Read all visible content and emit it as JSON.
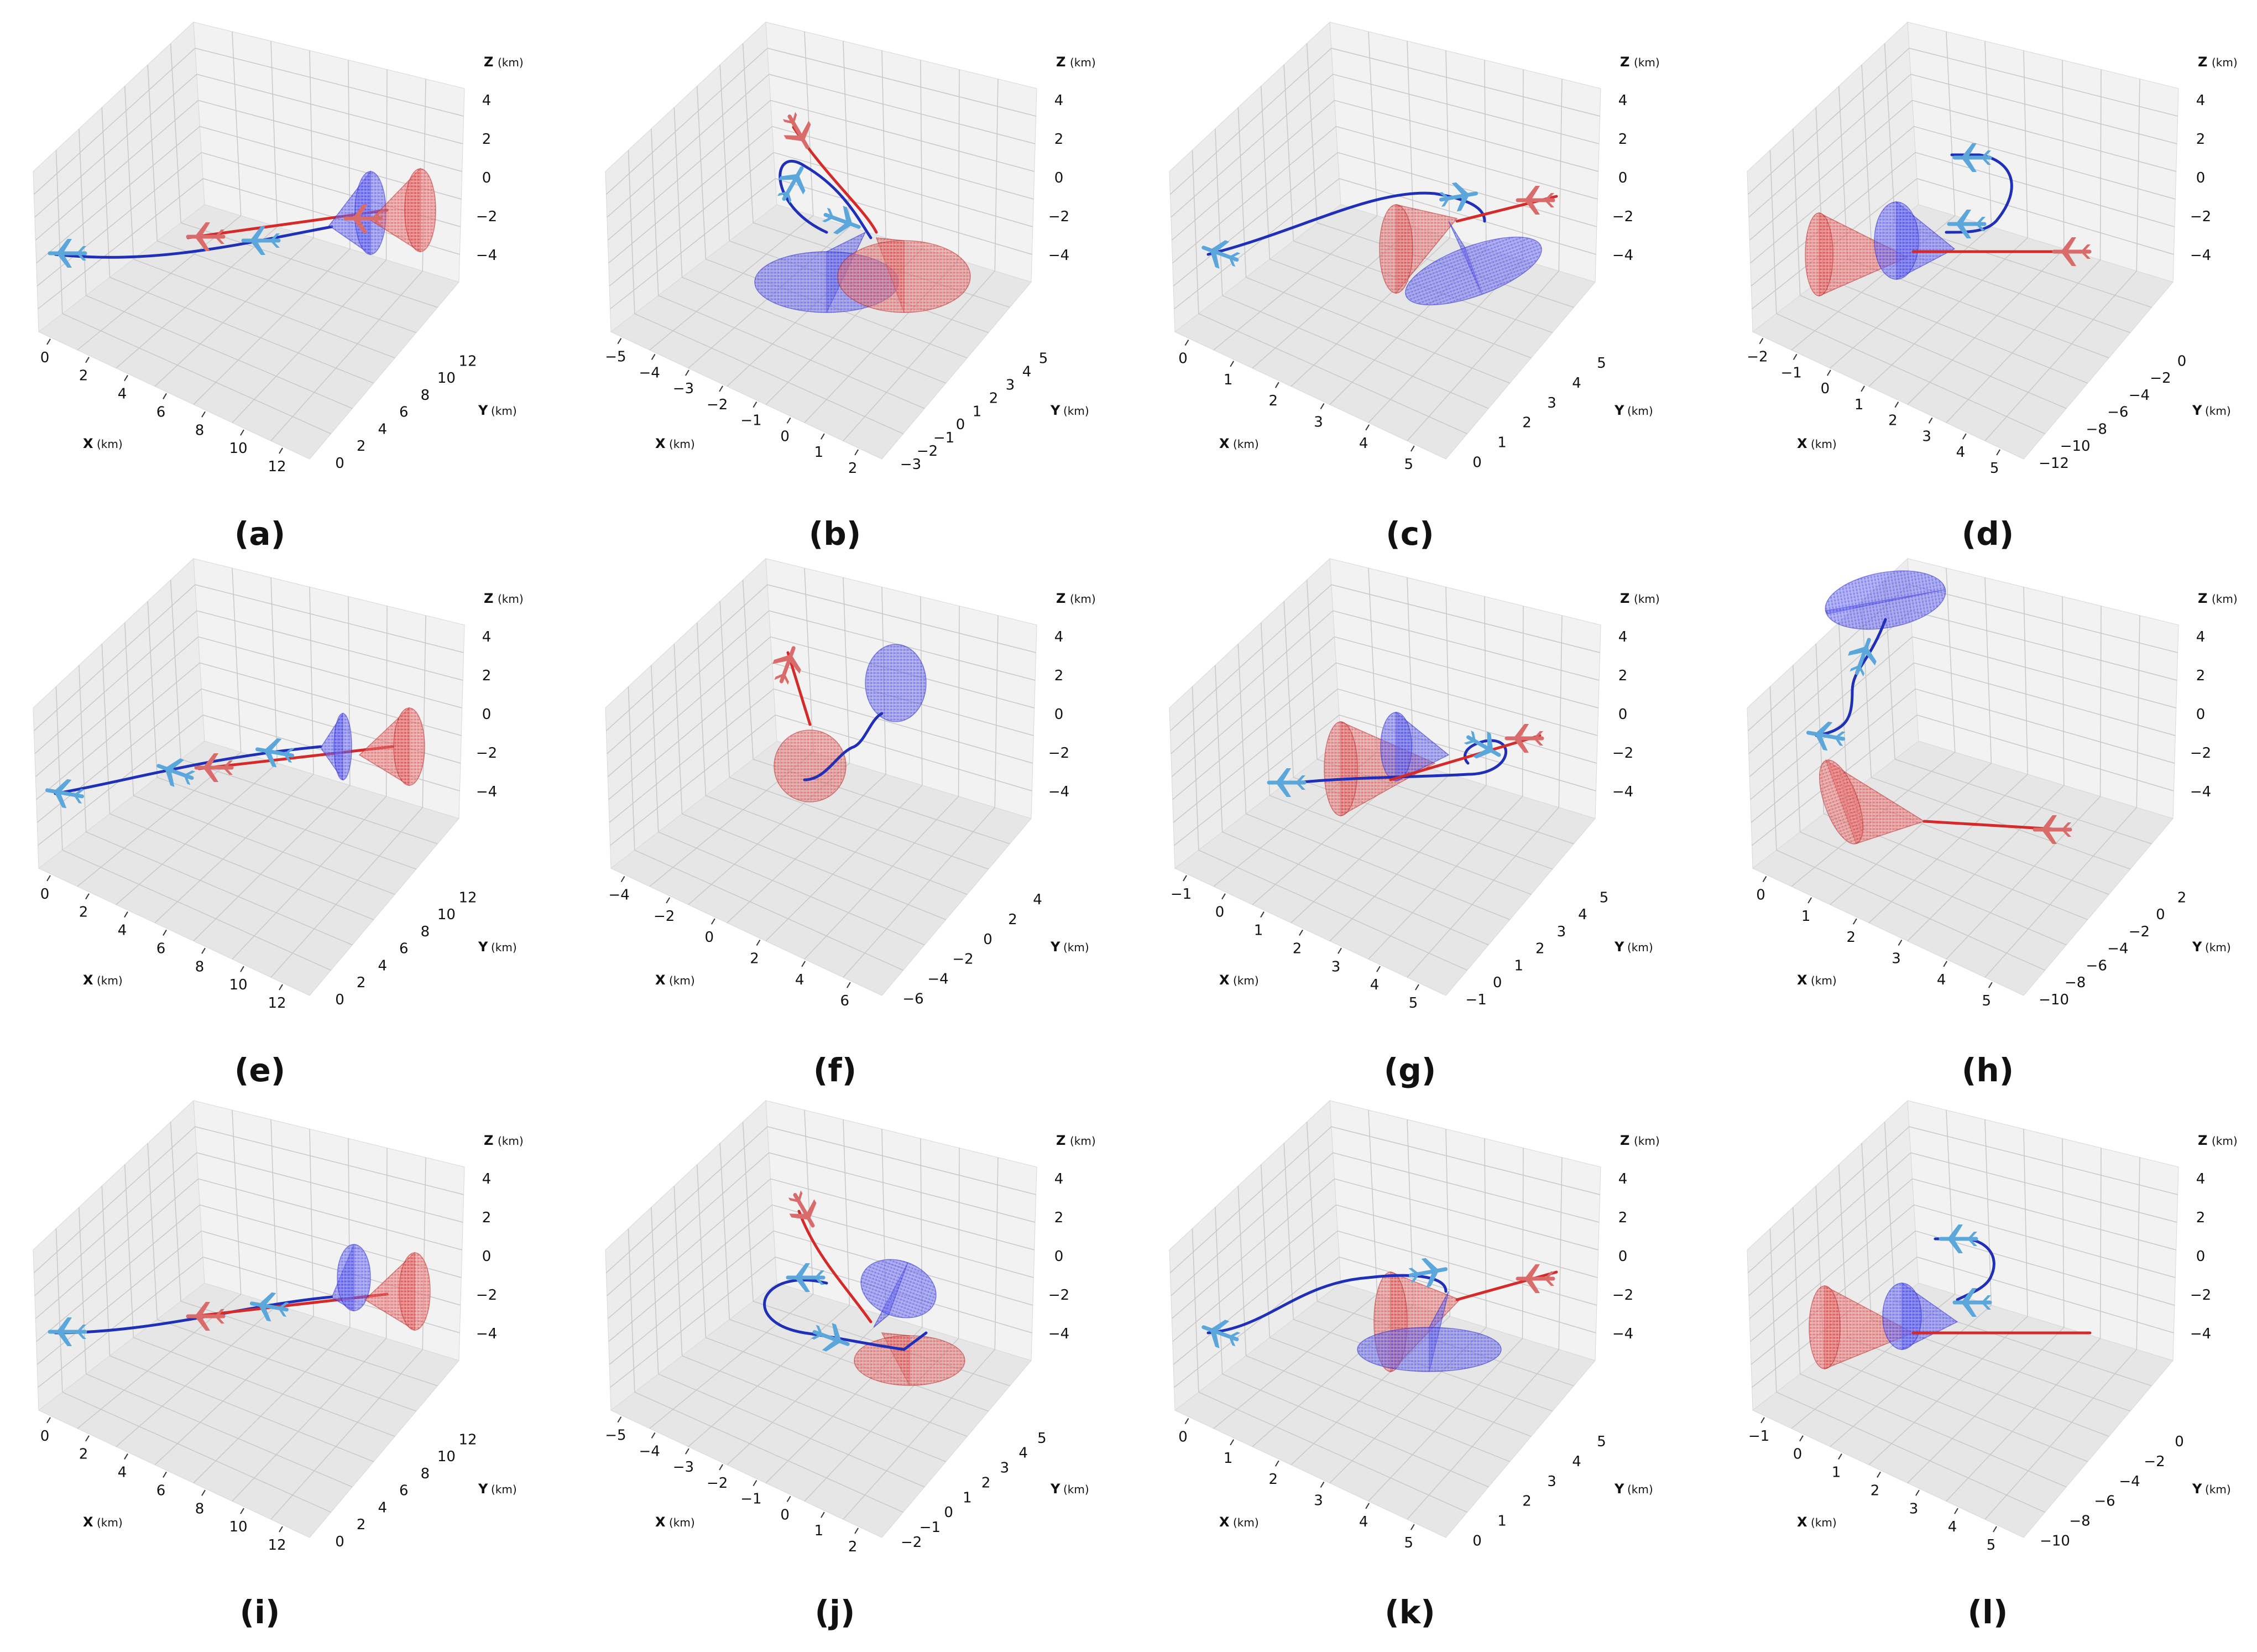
{
  "figure": {
    "description_free": true,
    "axis_units_label": "(km)"
  },
  "colors": {
    "blue_aircraft": "#5ba7dc",
    "red_aircraft": "#d96b6b",
    "blue_traj": "#1f2fb8",
    "red_traj": "#d42a2a",
    "blue_cone": "#4a4ae0",
    "red_cone": "#d93c3c",
    "pane": "#f0f0f0",
    "grid": "#c8c8c8"
  },
  "chart_data": [
    {
      "type": "line3d",
      "panel": "a",
      "caption": "(a)",
      "xlabel": "X",
      "ylabel": "Y",
      "zlabel": "Z",
      "unit": "(km)",
      "xticks": [
        "0",
        "2",
        "4",
        "6",
        "8",
        "10",
        "12"
      ],
      "yticks": [
        "0",
        "2",
        "4",
        "6",
        "8",
        "10",
        "12"
      ],
      "zticks": [
        "4",
        "2",
        "0",
        "−2",
        "−4"
      ],
      "xlim": [
        0,
        13
      ],
      "ylim": [
        0,
        13
      ],
      "zlim": [
        -5,
        5
      ]
    },
    {
      "type": "line3d",
      "panel": "b",
      "caption": "(b)",
      "xlabel": "X",
      "ylabel": "Y",
      "zlabel": "Z",
      "unit": "(km)",
      "xticks": [
        "−5",
        "−4",
        "−3",
        "−2",
        "−1",
        "0",
        "1",
        "2"
      ],
      "yticks": [
        "−3",
        "−2",
        "−1",
        "0",
        "1",
        "2",
        "3",
        "4",
        "5"
      ],
      "zticks": [
        "4",
        "2",
        "0",
        "−2",
        "−4"
      ],
      "xlim": [
        -5,
        2
      ],
      "ylim": [
        -3,
        5
      ],
      "zlim": [
        -5,
        5
      ]
    },
    {
      "type": "line3d",
      "panel": "c",
      "caption": "(c)",
      "xlabel": "X",
      "ylabel": "Y",
      "zlabel": "Z",
      "unit": "(km)",
      "xticks": [
        "0",
        "1",
        "2",
        "3",
        "4",
        "5"
      ],
      "yticks": [
        "0",
        "1",
        "2",
        "3",
        "4",
        "5"
      ],
      "zticks": [
        "4",
        "2",
        "0",
        "−2",
        "−4"
      ],
      "xlim": [
        0,
        5
      ],
      "ylim": [
        0,
        5
      ],
      "zlim": [
        -5,
        5
      ]
    },
    {
      "type": "line3d",
      "panel": "d",
      "caption": "(d)",
      "xlabel": "X",
      "ylabel": "Y",
      "zlabel": "Z",
      "unit": "(km)",
      "xticks": [
        "−2",
        "−1",
        "0",
        "1",
        "2",
        "3",
        "4",
        "5"
      ],
      "yticks": [
        "−12",
        "−10",
        "−8",
        "−6",
        "−4",
        "−2",
        "0"
      ],
      "zticks": [
        "4",
        "2",
        "0",
        "−2",
        "−4"
      ],
      "xlim": [
        -2,
        5
      ],
      "ylim": [
        -12,
        0
      ],
      "zlim": [
        -5,
        5
      ]
    },
    {
      "type": "line3d",
      "panel": "e",
      "caption": "(e)",
      "xlabel": "X",
      "ylabel": "Y",
      "zlabel": "Z",
      "unit": "(km)",
      "xticks": [
        "0",
        "2",
        "4",
        "6",
        "8",
        "10",
        "12"
      ],
      "yticks": [
        "0",
        "2",
        "4",
        "6",
        "8",
        "10",
        "12"
      ],
      "zticks": [
        "4",
        "2",
        "0",
        "−2",
        "−4"
      ],
      "xlim": [
        0,
        13
      ],
      "ylim": [
        0,
        13
      ],
      "zlim": [
        -5,
        5
      ]
    },
    {
      "type": "line3d",
      "panel": "f",
      "caption": "(f)",
      "xlabel": "X",
      "ylabel": "Y",
      "zlabel": "Z",
      "unit": "(km)",
      "xticks": [
        "−4",
        "−2",
        "0",
        "2",
        "4",
        "6"
      ],
      "yticks": [
        "−6",
        "−4",
        "−2",
        "0",
        "2",
        "4"
      ],
      "zticks": [
        "4",
        "2",
        "0",
        "−2",
        "−4"
      ],
      "xlim": [
        -5,
        7
      ],
      "ylim": [
        -6,
        5
      ],
      "zlim": [
        -5,
        5
      ]
    },
    {
      "type": "line3d",
      "panel": "g",
      "caption": "(g)",
      "xlabel": "X",
      "ylabel": "Y",
      "zlabel": "Z",
      "unit": "(km)",
      "xticks": [
        "−1",
        "0",
        "1",
        "2",
        "3",
        "4",
        "5"
      ],
      "yticks": [
        "−1",
        "0",
        "1",
        "2",
        "3",
        "4",
        "5"
      ],
      "zticks": [
        "4",
        "2",
        "0",
        "−2",
        "−4"
      ],
      "xlim": [
        -1,
        5
      ],
      "ylim": [
        -1,
        5
      ],
      "zlim": [
        -5,
        5
      ]
    },
    {
      "type": "line3d",
      "panel": "h",
      "caption": "(h)",
      "xlabel": "X",
      "ylabel": "Y",
      "zlabel": "Z",
      "unit": "(km)",
      "xticks": [
        "0",
        "1",
        "2",
        "3",
        "4",
        "5"
      ],
      "yticks": [
        "−10",
        "−8",
        "−6",
        "−4",
        "−2",
        "0",
        "2"
      ],
      "zticks": [
        "4",
        "2",
        "0",
        "−2",
        "−4"
      ],
      "xlim": [
        0,
        5
      ],
      "ylim": [
        -10,
        2
      ],
      "zlim": [
        -5,
        5
      ]
    },
    {
      "type": "line3d",
      "panel": "i",
      "caption": "(i)",
      "xlabel": "X",
      "ylabel": "Y",
      "zlabel": "Z",
      "unit": "(km)",
      "xticks": [
        "0",
        "2",
        "4",
        "6",
        "8",
        "10",
        "12"
      ],
      "yticks": [
        "0",
        "2",
        "4",
        "6",
        "8",
        "10",
        "12"
      ],
      "zticks": [
        "4",
        "2",
        "0",
        "−2",
        "−4"
      ],
      "xlim": [
        0,
        13
      ],
      "ylim": [
        0,
        13
      ],
      "zlim": [
        -5,
        5
      ]
    },
    {
      "type": "line3d",
      "panel": "j",
      "caption": "(j)",
      "xlabel": "X",
      "ylabel": "Y",
      "zlabel": "Z",
      "unit": "(km)",
      "xticks": [
        "−5",
        "−4",
        "−3",
        "−2",
        "−1",
        "0",
        "1",
        "2"
      ],
      "yticks": [
        "−2",
        "−1",
        "0",
        "1",
        "2",
        "3",
        "4",
        "5"
      ],
      "zticks": [
        "4",
        "2",
        "0",
        "−2",
        "−4"
      ],
      "xlim": [
        -5,
        2
      ],
      "ylim": [
        -2,
        5
      ],
      "zlim": [
        -5,
        5
      ]
    },
    {
      "type": "line3d",
      "panel": "k",
      "caption": "(k)",
      "xlabel": "X",
      "ylabel": "Y",
      "zlabel": "Z",
      "unit": "(km)",
      "xticks": [
        "0",
        "1",
        "2",
        "3",
        "4",
        "5"
      ],
      "yticks": [
        "0",
        "1",
        "2",
        "3",
        "4",
        "5"
      ],
      "zticks": [
        "4",
        "2",
        "0",
        "−2",
        "−4"
      ],
      "xlim": [
        0,
        5
      ],
      "ylim": [
        0,
        5
      ],
      "zlim": [
        -5,
        5
      ]
    },
    {
      "type": "line3d",
      "panel": "l",
      "caption": "(l)",
      "xlabel": "X",
      "ylabel": "Y",
      "zlabel": "Z",
      "unit": "(km)",
      "xticks": [
        "−1",
        "0",
        "1",
        "2",
        "3",
        "4",
        "5"
      ],
      "yticks": [
        "−10",
        "−8",
        "−6",
        "−4",
        "−2",
        "0"
      ],
      "zticks": [
        "4",
        "2",
        "0",
        "−2",
        "−4"
      ],
      "xlim": [
        -1,
        5
      ],
      "ylim": [
        -10,
        0
      ],
      "zlim": [
        -5,
        5
      ]
    }
  ]
}
